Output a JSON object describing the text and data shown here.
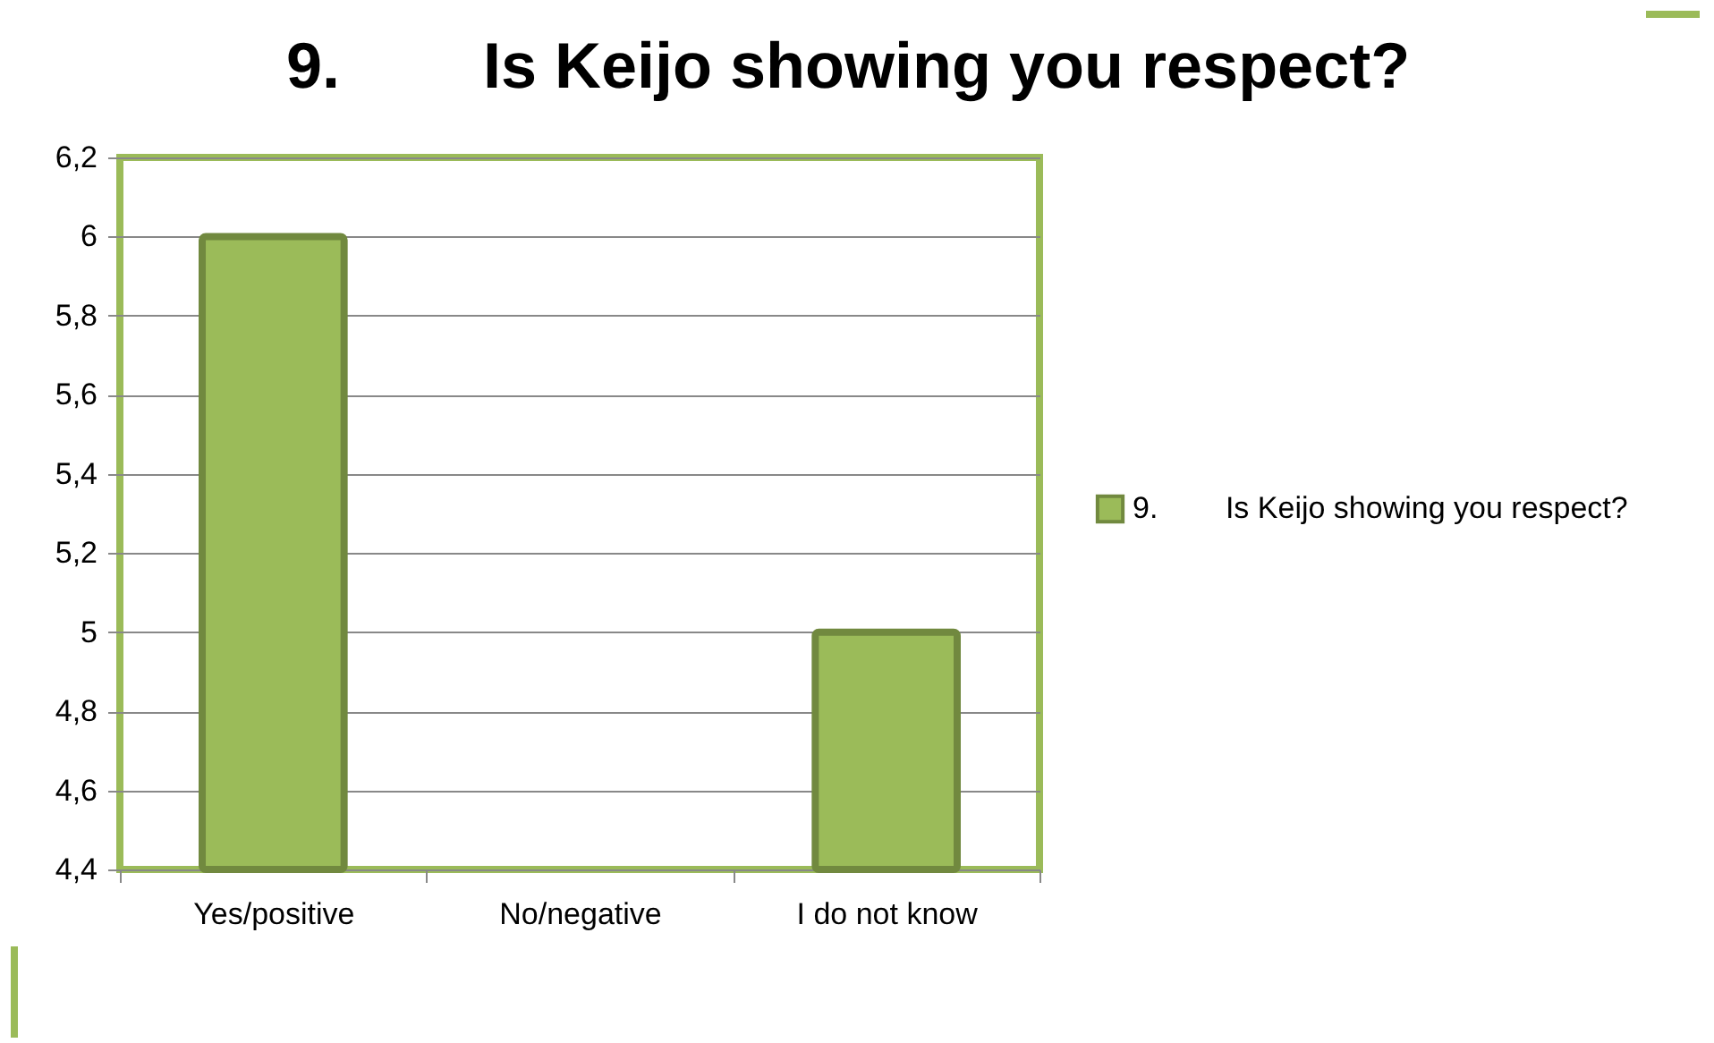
{
  "chart_data": {
    "type": "bar",
    "title": "9.        Is Keijo showing you respect?",
    "categories": [
      "Yes/positive",
      "No/negative",
      "I do not know"
    ],
    "series": [
      {
        "name": "9.        Is Keijo showing you respect?",
        "color": "#9bbb59",
        "values": [
          6,
          null,
          5
        ]
      }
    ],
    "ylim": [
      4.4,
      6.2
    ],
    "yticks": [
      {
        "value": 4.4,
        "label": "4,4"
      },
      {
        "value": 4.6,
        "label": "4,6"
      },
      {
        "value": 4.8,
        "label": "4,8"
      },
      5,
      {
        "value": 5.2,
        "label": "5,2"
      },
      {
        "value": 5.4,
        "label": "5,4"
      },
      {
        "value": 5.6,
        "label": "5,6"
      },
      {
        "value": 5.8,
        "label": "5,8"
      },
      6,
      {
        "value": 6.2,
        "label": "6,2"
      }
    ],
    "grid": "y",
    "legend": "right"
  }
}
